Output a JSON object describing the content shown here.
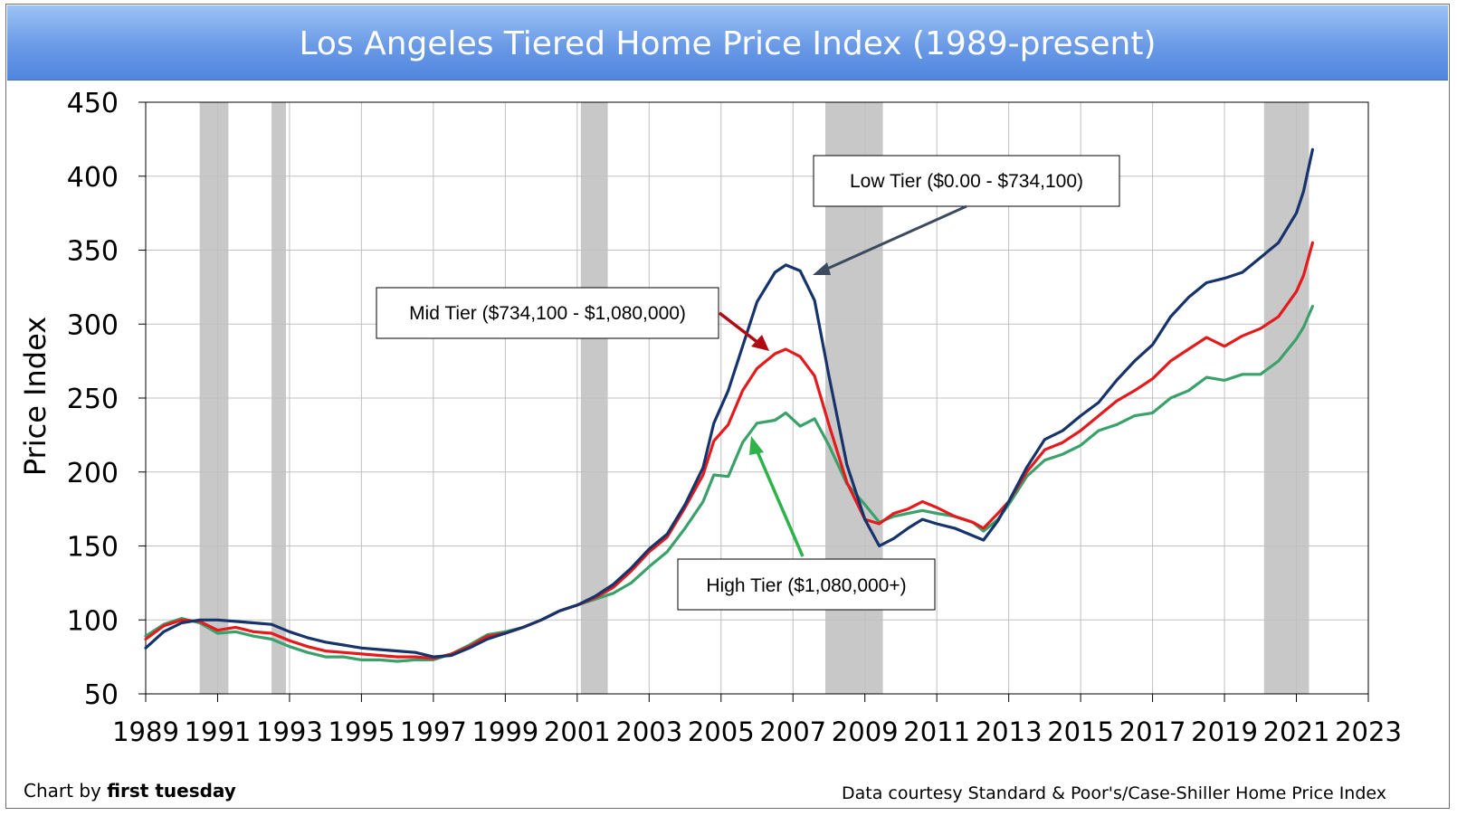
{
  "title": "Los Angeles Tiered Home Price Index (1989-present)",
  "footer": {
    "credit_prefix": "Chart by ",
    "credit_name": "first tuesday",
    "source": "Data courtesy Standard & Poor's/Case-Shiller Home Price Index"
  },
  "annotations": {
    "low": "Low Tier ($0.00 - $734,100)",
    "mid": "Mid Tier ($734,100 - $1,080,000)",
    "high": "High Tier ($1,080,000+)"
  },
  "colors": {
    "low": "#17336b",
    "mid": "#e41a1c",
    "high": "#3aa16a",
    "recession": "#c8c8c8",
    "grid": "#c0c0c0",
    "title_bar": "#6a9ae6"
  },
  "chart_data": {
    "type": "line",
    "ylabel": "Price Index",
    "xlabel": "",
    "xlim": [
      1989,
      2023
    ],
    "ylim": [
      50,
      450
    ],
    "x_ticks": [
      1989,
      1991,
      1993,
      1995,
      1997,
      1999,
      2001,
      2003,
      2005,
      2007,
      2009,
      2011,
      2013,
      2015,
      2017,
      2019,
      2021,
      2023
    ],
    "y_ticks": [
      50,
      100,
      150,
      200,
      250,
      300,
      350,
      400,
      450
    ],
    "grid": true,
    "recession_bands": [
      [
        1990.5,
        1991.3
      ],
      [
        1992.5,
        1992.9
      ],
      [
        2001.1,
        2001.85
      ],
      [
        2007.9,
        2009.5
      ],
      [
        2020.1,
        2021.35
      ]
    ],
    "series": [
      {
        "name": "Low Tier ($0.00 - $734,100)",
        "key": "low",
        "points": [
          [
            1989.0,
            81
          ],
          [
            1989.5,
            92
          ],
          [
            1990.0,
            98
          ],
          [
            1990.5,
            100
          ],
          [
            1991.0,
            100
          ],
          [
            1991.5,
            99
          ],
          [
            1992.0,
            98
          ],
          [
            1992.5,
            97
          ],
          [
            1993.0,
            92
          ],
          [
            1993.5,
            88
          ],
          [
            1994.0,
            85
          ],
          [
            1994.5,
            83
          ],
          [
            1995.0,
            81
          ],
          [
            1995.5,
            80
          ],
          [
            1996.0,
            79
          ],
          [
            1996.5,
            78
          ],
          [
            1997.0,
            75
          ],
          [
            1997.5,
            76
          ],
          [
            1998.0,
            81
          ],
          [
            1998.5,
            87
          ],
          [
            1999.0,
            91
          ],
          [
            1999.5,
            95
          ],
          [
            2000.0,
            100
          ],
          [
            2000.5,
            106
          ],
          [
            2001.0,
            110
          ],
          [
            2001.5,
            116
          ],
          [
            2002.0,
            124
          ],
          [
            2002.5,
            135
          ],
          [
            2003.0,
            148
          ],
          [
            2003.5,
            158
          ],
          [
            2004.0,
            178
          ],
          [
            2004.5,
            203
          ],
          [
            2004.8,
            233
          ],
          [
            2005.2,
            255
          ],
          [
            2005.6,
            285
          ],
          [
            2006.0,
            315
          ],
          [
            2006.5,
            335
          ],
          [
            2006.8,
            340
          ],
          [
            2007.2,
            336
          ],
          [
            2007.6,
            316
          ],
          [
            2008.0,
            265
          ],
          [
            2008.5,
            205
          ],
          [
            2009.0,
            168
          ],
          [
            2009.4,
            150
          ],
          [
            2009.8,
            155
          ],
          [
            2010.2,
            162
          ],
          [
            2010.6,
            168
          ],
          [
            2011.0,
            165
          ],
          [
            2011.5,
            162
          ],
          [
            2012.0,
            157
          ],
          [
            2012.3,
            154
          ],
          [
            2012.7,
            167
          ],
          [
            2013.0,
            180
          ],
          [
            2013.5,
            203
          ],
          [
            2014.0,
            222
          ],
          [
            2014.5,
            228
          ],
          [
            2015.0,
            238
          ],
          [
            2015.5,
            247
          ],
          [
            2016.0,
            262
          ],
          [
            2016.5,
            275
          ],
          [
            2017.0,
            286
          ],
          [
            2017.5,
            305
          ],
          [
            2018.0,
            318
          ],
          [
            2018.5,
            328
          ],
          [
            2019.0,
            331
          ],
          [
            2019.5,
            335
          ],
          [
            2020.0,
            345
          ],
          [
            2020.5,
            355
          ],
          [
            2021.0,
            375
          ],
          [
            2021.2,
            390
          ],
          [
            2021.45,
            418
          ]
        ]
      },
      {
        "name": "Mid Tier ($734,100 - $1,080,000)",
        "key": "mid",
        "points": [
          [
            1989.0,
            87
          ],
          [
            1989.5,
            96
          ],
          [
            1990.0,
            100
          ],
          [
            1990.5,
            99
          ],
          [
            1991.0,
            93
          ],
          [
            1991.5,
            95
          ],
          [
            1992.0,
            92
          ],
          [
            1992.5,
            91
          ],
          [
            1993.0,
            86
          ],
          [
            1993.5,
            82
          ],
          [
            1994.0,
            79
          ],
          [
            1994.5,
            78
          ],
          [
            1995.0,
            77
          ],
          [
            1995.5,
            76
          ],
          [
            1996.0,
            75
          ],
          [
            1996.5,
            75
          ],
          [
            1997.0,
            74
          ],
          [
            1997.5,
            77
          ],
          [
            1998.0,
            82
          ],
          [
            1998.5,
            89
          ],
          [
            1999.0,
            91
          ],
          [
            1999.5,
            95
          ],
          [
            2000.0,
            100
          ],
          [
            2000.5,
            106
          ],
          [
            2001.0,
            110
          ],
          [
            2001.5,
            115
          ],
          [
            2002.0,
            122
          ],
          [
            2002.5,
            133
          ],
          [
            2003.0,
            146
          ],
          [
            2003.5,
            156
          ],
          [
            2004.0,
            176
          ],
          [
            2004.5,
            198
          ],
          [
            2004.8,
            221
          ],
          [
            2005.2,
            232
          ],
          [
            2005.6,
            255
          ],
          [
            2006.0,
            270
          ],
          [
            2006.5,
            280
          ],
          [
            2006.8,
            283
          ],
          [
            2007.2,
            278
          ],
          [
            2007.6,
            265
          ],
          [
            2008.0,
            232
          ],
          [
            2008.5,
            193
          ],
          [
            2009.0,
            168
          ],
          [
            2009.4,
            165
          ],
          [
            2009.8,
            172
          ],
          [
            2010.2,
            175
          ],
          [
            2010.6,
            180
          ],
          [
            2011.0,
            176
          ],
          [
            2011.5,
            170
          ],
          [
            2012.0,
            166
          ],
          [
            2012.3,
            162
          ],
          [
            2012.7,
            172
          ],
          [
            2013.0,
            180
          ],
          [
            2013.5,
            200
          ],
          [
            2014.0,
            215
          ],
          [
            2014.5,
            220
          ],
          [
            2015.0,
            228
          ],
          [
            2015.5,
            238
          ],
          [
            2016.0,
            248
          ],
          [
            2016.5,
            255
          ],
          [
            2017.0,
            263
          ],
          [
            2017.5,
            275
          ],
          [
            2018.0,
            283
          ],
          [
            2018.5,
            291
          ],
          [
            2019.0,
            285
          ],
          [
            2019.5,
            292
          ],
          [
            2020.0,
            297
          ],
          [
            2020.5,
            305
          ],
          [
            2021.0,
            322
          ],
          [
            2021.2,
            333
          ],
          [
            2021.45,
            355
          ]
        ]
      },
      {
        "name": "High Tier ($1,080,000+)",
        "key": "high",
        "points": [
          [
            1989.0,
            89
          ],
          [
            1989.5,
            97
          ],
          [
            1990.0,
            101
          ],
          [
            1990.5,
            98
          ],
          [
            1991.0,
            91
          ],
          [
            1991.5,
            92
          ],
          [
            1992.0,
            89
          ],
          [
            1992.5,
            87
          ],
          [
            1993.0,
            82
          ],
          [
            1993.5,
            78
          ],
          [
            1994.0,
            75
          ],
          [
            1994.5,
            75
          ],
          [
            1995.0,
            73
          ],
          [
            1995.5,
            73
          ],
          [
            1996.0,
            72
          ],
          [
            1996.5,
            73
          ],
          [
            1997.0,
            73
          ],
          [
            1997.5,
            77
          ],
          [
            1998.0,
            83
          ],
          [
            1998.5,
            90
          ],
          [
            1999.0,
            92
          ],
          [
            1999.5,
            95
          ],
          [
            2000.0,
            100
          ],
          [
            2000.5,
            106
          ],
          [
            2001.0,
            110
          ],
          [
            2001.5,
            114
          ],
          [
            2002.0,
            118
          ],
          [
            2002.5,
            125
          ],
          [
            2003.0,
            136
          ],
          [
            2003.5,
            146
          ],
          [
            2004.0,
            162
          ],
          [
            2004.5,
            180
          ],
          [
            2004.8,
            198
          ],
          [
            2005.2,
            197
          ],
          [
            2005.6,
            220
          ],
          [
            2006.0,
            233
          ],
          [
            2006.5,
            235
          ],
          [
            2006.8,
            240
          ],
          [
            2007.2,
            231
          ],
          [
            2007.6,
            236
          ],
          [
            2008.0,
            218
          ],
          [
            2008.5,
            192
          ],
          [
            2009.0,
            178
          ],
          [
            2009.4,
            166
          ],
          [
            2009.8,
            170
          ],
          [
            2010.2,
            172
          ],
          [
            2010.6,
            174
          ],
          [
            2011.0,
            172
          ],
          [
            2011.5,
            170
          ],
          [
            2012.0,
            166
          ],
          [
            2012.3,
            160
          ],
          [
            2012.7,
            168
          ],
          [
            2013.0,
            178
          ],
          [
            2013.5,
            197
          ],
          [
            2014.0,
            208
          ],
          [
            2014.5,
            212
          ],
          [
            2015.0,
            218
          ],
          [
            2015.5,
            228
          ],
          [
            2016.0,
            232
          ],
          [
            2016.5,
            238
          ],
          [
            2017.0,
            240
          ],
          [
            2017.5,
            250
          ],
          [
            2018.0,
            255
          ],
          [
            2018.5,
            264
          ],
          [
            2019.0,
            262
          ],
          [
            2019.5,
            266
          ],
          [
            2020.0,
            266
          ],
          [
            2020.5,
            275
          ],
          [
            2021.0,
            290
          ],
          [
            2021.2,
            298
          ],
          [
            2021.45,
            312
          ]
        ]
      }
    ]
  }
}
